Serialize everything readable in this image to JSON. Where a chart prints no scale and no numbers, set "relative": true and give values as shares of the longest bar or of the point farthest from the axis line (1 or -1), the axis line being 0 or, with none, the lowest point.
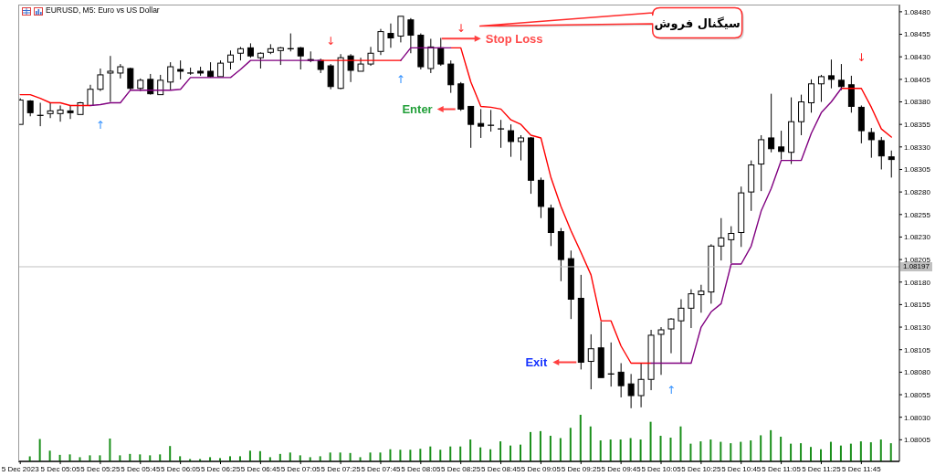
{
  "chart_data": [
    {
      "type": "candlestick",
      "title": "EURUSD, M5: Euro vs US Dollar",
      "x": [
        "2023-12-05T04:45",
        "2023-12-05T04:50",
        "2023-12-05T04:55",
        "2023-12-05T05:00",
        "2023-12-05T05:05",
        "2023-12-05T05:10",
        "2023-12-05T05:15",
        "2023-12-05T05:20",
        "2023-12-05T05:25",
        "2023-12-05T05:30",
        "2023-12-05T05:35",
        "2023-12-05T05:40",
        "2023-12-05T05:45",
        "2023-12-05T05:50",
        "2023-12-05T05:55",
        "2023-12-05T06:00",
        "2023-12-05T06:05",
        "2023-12-05T06:10",
        "2023-12-05T06:15",
        "2023-12-05T06:20",
        "2023-12-05T06:25",
        "2023-12-05T06:30",
        "2023-12-05T06:35",
        "2023-12-05T06:40",
        "2023-12-05T06:45",
        "2023-12-05T06:50",
        "2023-12-05T06:55",
        "2023-12-05T07:00",
        "2023-12-05T07:05",
        "2023-12-05T07:10",
        "2023-12-05T07:15",
        "2023-12-05T07:20",
        "2023-12-05T07:25",
        "2023-12-05T07:30",
        "2023-12-05T07:35",
        "2023-12-05T07:40",
        "2023-12-05T07:45",
        "2023-12-05T07:50",
        "2023-12-05T07:55",
        "2023-12-05T08:00",
        "2023-12-05T08:05",
        "2023-12-05T08:10",
        "2023-12-05T08:15",
        "2023-12-05T08:20",
        "2023-12-05T08:25",
        "2023-12-05T08:30",
        "2023-12-05T08:35",
        "2023-12-05T08:40",
        "2023-12-05T08:45",
        "2023-12-05T08:50",
        "2023-12-05T08:55",
        "2023-12-05T09:00",
        "2023-12-05T09:05",
        "2023-12-05T09:10",
        "2023-12-05T09:15",
        "2023-12-05T09:20",
        "2023-12-05T09:25",
        "2023-12-05T09:30",
        "2023-12-05T09:35",
        "2023-12-05T09:40",
        "2023-12-05T09:45",
        "2023-12-05T09:50",
        "2023-12-05T09:55",
        "2023-12-05T10:00",
        "2023-12-05T10:05",
        "2023-12-05T10:10",
        "2023-12-05T10:15",
        "2023-12-05T10:20",
        "2023-12-05T10:25",
        "2023-12-05T10:30",
        "2023-12-05T10:35",
        "2023-12-05T10:40",
        "2023-12-05T10:45",
        "2023-12-05T10:50",
        "2023-12-05T10:55",
        "2023-12-05T11:00",
        "2023-12-05T11:05",
        "2023-12-05T11:10",
        "2023-12-05T11:15",
        "2023-12-05T11:20",
        "2023-12-05T11:25",
        "2023-12-05T11:30",
        "2023-12-05T11:35",
        "2023-12-05T11:40",
        "2023-12-05T11:45",
        "2023-12-05T11:50",
        "2023-12-05T11:55",
        "2023-12-05T12:00"
      ],
      "ohlc": [
        [
          1.08355,
          1.08384,
          1.08355,
          1.08382
        ],
        [
          1.08381,
          1.08382,
          1.08364,
          1.08368
        ],
        [
          1.08365,
          1.08379,
          1.08353,
          1.08365
        ],
        [
          1.08367,
          1.08379,
          1.08362,
          1.0837
        ],
        [
          1.08367,
          1.08376,
          1.08358,
          1.08371
        ],
        [
          1.0837,
          1.08376,
          1.08361,
          1.08368
        ],
        [
          1.08366,
          1.0838,
          1.08366,
          1.08379
        ],
        [
          1.08376,
          1.08399,
          1.08376,
          1.08394
        ],
        [
          1.08394,
          1.08417,
          1.08392,
          1.0841
        ],
        [
          1.08412,
          1.08431,
          1.0838,
          1.08414
        ],
        [
          1.08412,
          1.08422,
          1.08406,
          1.08419
        ],
        [
          1.08417,
          1.08418,
          1.08393,
          1.08395
        ],
        [
          1.08395,
          1.08406,
          1.08392,
          1.08404
        ],
        [
          1.08405,
          1.08411,
          1.08388,
          1.08389
        ],
        [
          1.08388,
          1.0841,
          1.08388,
          1.08404
        ],
        [
          1.08402,
          1.08424,
          1.08393,
          1.08419
        ],
        [
          1.08416,
          1.08426,
          1.08405,
          1.08414
        ],
        [
          1.08412,
          1.08418,
          1.0841,
          1.08412
        ],
        [
          1.08414,
          1.08419,
          1.08409,
          1.08412
        ],
        [
          1.08414,
          1.08424,
          1.08407,
          1.08408
        ],
        [
          1.08408,
          1.08426,
          1.08408,
          1.08423
        ],
        [
          1.08424,
          1.08437,
          1.08416,
          1.08432
        ],
        [
          1.08434,
          1.08441,
          1.08426,
          1.08439
        ],
        [
          1.0844,
          1.08445,
          1.08429,
          1.08431
        ],
        [
          1.08429,
          1.08435,
          1.08417,
          1.08434
        ],
        [
          1.08435,
          1.08444,
          1.08433,
          1.08439
        ],
        [
          1.08437,
          1.08441,
          1.08421,
          1.0844
        ],
        [
          1.08439,
          1.08456,
          1.08436,
          1.08439
        ],
        [
          1.0844,
          1.08441,
          1.08416,
          1.08431
        ],
        [
          1.08427,
          1.08436,
          1.08424,
          1.08426
        ],
        [
          1.08426,
          1.08428,
          1.08412,
          1.08416
        ],
        [
          1.0842,
          1.08422,
          1.08394,
          1.08397
        ],
        [
          1.08395,
          1.08433,
          1.08394,
          1.08429
        ],
        [
          1.08431,
          1.08433,
          1.08402,
          1.08415
        ],
        [
          1.08414,
          1.08429,
          1.08414,
          1.08422
        ],
        [
          1.08422,
          1.08441,
          1.0842,
          1.08434
        ],
        [
          1.08436,
          1.08461,
          1.08432,
          1.08458
        ],
        [
          1.08456,
          1.08467,
          1.0844,
          1.08451
        ],
        [
          1.08453,
          1.08475,
          1.08446,
          1.08475
        ],
        [
          1.08471,
          1.08473,
          1.08434,
          1.08454
        ],
        [
          1.08454,
          1.08456,
          1.08416,
          1.08419
        ],
        [
          1.08417,
          1.0845,
          1.08412,
          1.08441
        ],
        [
          1.0844,
          1.08451,
          1.0842,
          1.08422
        ],
        [
          1.08422,
          1.08426,
          1.0839,
          1.08399
        ],
        [
          1.084,
          1.08402,
          1.0837,
          1.08372
        ],
        [
          1.08375,
          1.08375,
          1.08329,
          1.08355
        ],
        [
          1.08356,
          1.08372,
          1.0834,
          1.08353
        ],
        [
          1.08354,
          1.08371,
          1.08347,
          1.08354
        ],
        [
          1.0835,
          1.0836,
          1.08329,
          1.0835
        ],
        [
          1.08348,
          1.08355,
          1.08319,
          1.08336
        ],
        [
          1.08336,
          1.08343,
          1.08315,
          1.0834
        ],
        [
          1.0834,
          1.08341,
          1.08278,
          1.08293
        ],
        [
          1.08293,
          1.08296,
          1.08251,
          1.08264
        ],
        [
          1.08262,
          1.08266,
          1.0822,
          1.08235
        ],
        [
          1.08236,
          1.0824,
          1.08181,
          1.08205
        ],
        [
          1.08206,
          1.08215,
          1.08139,
          1.08161
        ],
        [
          1.08162,
          1.08188,
          1.08083,
          1.08091
        ],
        [
          1.08092,
          1.08122,
          1.08061,
          1.08106
        ],
        [
          1.08107,
          1.08136,
          1.08074,
          1.08074
        ],
        [
          1.08078,
          1.08113,
          1.08064,
          1.08078
        ],
        [
          1.0808,
          1.0809,
          1.08052,
          1.08065
        ],
        [
          1.08067,
          1.08078,
          1.0804,
          1.08054
        ],
        [
          1.08054,
          1.0809,
          1.08041,
          1.08072
        ],
        [
          1.08072,
          1.08127,
          1.0806,
          1.08121
        ],
        [
          1.08122,
          1.0813,
          1.08077,
          1.08127
        ],
        [
          1.08128,
          1.0814,
          1.08101,
          1.08139
        ],
        [
          1.08137,
          1.08161,
          1.0809,
          1.08151
        ],
        [
          1.08151,
          1.08172,
          1.08129,
          1.08167
        ],
        [
          1.08166,
          1.08177,
          1.08146,
          1.0817
        ],
        [
          1.08169,
          1.08222,
          1.08156,
          1.0822
        ],
        [
          1.0822,
          1.08251,
          1.08204,
          1.08229
        ],
        [
          1.08227,
          1.08242,
          1.08201,
          1.08234
        ],
        [
          1.08235,
          1.08286,
          1.08219,
          1.08279
        ],
        [
          1.0828,
          1.08315,
          1.08259,
          1.0831
        ],
        [
          1.08311,
          1.08343,
          1.08281,
          1.08338
        ],
        [
          1.0834,
          1.08389,
          1.08324,
          1.08328
        ],
        [
          1.0833,
          1.08348,
          1.08316,
          1.08325
        ],
        [
          1.08324,
          1.08385,
          1.08311,
          1.08358
        ],
        [
          1.08358,
          1.08388,
          1.08343,
          1.0838
        ],
        [
          1.08379,
          1.08405,
          1.08368,
          1.084
        ],
        [
          1.084,
          1.0841,
          1.0838,
          1.08408
        ],
        [
          1.08409,
          1.08427,
          1.08395,
          1.08405
        ],
        [
          1.08404,
          1.08422,
          1.08393,
          1.08397
        ],
        [
          1.08399,
          1.08409,
          1.08368,
          1.08375
        ],
        [
          1.08374,
          1.08376,
          1.08334,
          1.08348
        ],
        [
          1.08346,
          1.08351,
          1.08318,
          1.08338
        ],
        [
          1.08337,
          1.08341,
          1.08305,
          1.0832
        ],
        [
          1.08319,
          1.08326,
          1.08296,
          1.08316
        ]
      ],
      "series": [
        {
          "type": "line",
          "color": "#ff0000",
          "values": [
            1.08388,
            1.08388,
            1.08384,
            1.08379,
            1.08379,
            1.08376,
            1.08376,
            1.08376,
            null,
            null,
            null,
            null,
            null,
            null,
            null,
            null,
            null,
            null,
            null,
            null,
            null,
            null,
            null,
            null,
            null,
            null,
            null,
            null,
            null,
            null,
            1.08426,
            1.08426,
            1.08426,
            1.08426,
            1.08426,
            1.08426,
            1.08426,
            1.08426,
            1.08426,
            null,
            null,
            null,
            null,
            1.0844,
            1.0844,
            1.08402,
            1.08375,
            1.08374,
            1.08372,
            1.0836,
            1.08355,
            1.08343,
            1.0834,
            1.08296,
            1.08264,
            1.08237,
            1.08213,
            1.08188,
            1.08137,
            1.08137,
            1.08109,
            1.0809,
            1.0809,
            1.0809,
            null,
            null,
            null,
            null,
            null,
            null,
            null,
            null,
            null,
            null,
            null,
            null,
            null,
            null,
            null,
            null,
            null,
            null,
            1.08395,
            1.08395,
            1.08395,
            1.08374,
            1.0835,
            1.08341
          ]
        },
        {
          "type": "line",
          "color": "#800080",
          "values": [
            null,
            null,
            null,
            null,
            null,
            null,
            null,
            1.08376,
            1.08377,
            1.08379,
            1.08379,
            1.08393,
            1.08393,
            1.08393,
            1.08393,
            1.08393,
            1.08394,
            1.08407,
            1.08407,
            1.08407,
            1.08407,
            1.08407,
            1.08416,
            1.08426,
            1.08426,
            1.08426,
            1.08426,
            1.08426,
            1.08426,
            1.08426,
            1.08426,
            null,
            null,
            null,
            null,
            null,
            null,
            null,
            1.08426,
            1.0844,
            1.0844,
            1.0844,
            1.0844,
            1.0844,
            null,
            null,
            null,
            null,
            null,
            null,
            null,
            null,
            null,
            null,
            null,
            null,
            null,
            null,
            null,
            null,
            null,
            null,
            null,
            1.0809,
            1.0809,
            1.0809,
            1.0809,
            1.0809,
            1.0813,
            1.08147,
            1.08156,
            1.082,
            1.082,
            1.0822,
            1.08259,
            1.08284,
            1.08315,
            1.08315,
            1.08315,
            1.08345,
            1.08368,
            1.0838,
            1.08395,
            null,
            null,
            null,
            null,
            null
          ]
        }
      ],
      "xlim": [
        "2023-12-05T04:44",
        "2023-12-05T12:04"
      ],
      "xticks": [
        {
          "value": "2023-12-05T04:45",
          "label": "5 Dec 2023"
        },
        {
          "value": "2023-12-05T05:05",
          "label": "5 Dec 05:05"
        },
        {
          "value": "2023-12-05T05:25",
          "label": "5 Dec 05:25"
        },
        {
          "value": "2023-12-05T05:45",
          "label": "5 Dec 05:45"
        },
        {
          "value": "2023-12-05T06:05",
          "label": "5 Dec 06:05"
        },
        {
          "value": "2023-12-05T06:25",
          "label": "5 Dec 06:25"
        },
        {
          "value": "2023-12-05T06:45",
          "label": "5 Dec 06:45"
        },
        {
          "value": "2023-12-05T07:05",
          "label": "5 Dec 07:05"
        },
        {
          "value": "2023-12-05T07:25",
          "label": "5 Dec 07:25"
        },
        {
          "value": "2023-12-05T07:45",
          "label": "5 Dec 07:45"
        },
        {
          "value": "2023-12-05T08:05",
          "label": "5 Dec 08:05"
        },
        {
          "value": "2023-12-05T08:25",
          "label": "5 Dec 08:25"
        },
        {
          "value": "2023-12-05T08:45",
          "label": "5 Dec 08:45"
        },
        {
          "value": "2023-12-05T09:05",
          "label": "5 Dec 09:05"
        },
        {
          "value": "2023-12-05T09:25",
          "label": "5 Dec 09:25"
        },
        {
          "value": "2023-12-05T09:45",
          "label": "5 Dec 09:45"
        },
        {
          "value": "2023-12-05T10:05",
          "label": "5 Dec 10:05"
        },
        {
          "value": "2023-12-05T10:25",
          "label": "5 Dec 10:25"
        },
        {
          "value": "2023-12-05T10:45",
          "label": "5 Dec 10:45"
        },
        {
          "value": "2023-12-05T11:05",
          "label": "5 Dec 11:05"
        },
        {
          "value": "2023-12-05T11:25",
          "label": "5 Dec 11:25"
        },
        {
          "value": "2023-12-05T11:45",
          "label": "5 Dec 11:45"
        }
      ],
      "ylim": [
        1.07981,
        1.08488
      ],
      "yticks": [
        {
          "value": 1.0848,
          "label": "1.08480"
        },
        1.08455,
        {
          "value": 1.0843,
          "label": "1.08430"
        },
        1.08405,
        {
          "value": 1.0838,
          "label": "1.08380"
        },
        1.08355,
        {
          "value": 1.0833,
          "label": "1.08330"
        },
        1.08305,
        {
          "value": 1.0828,
          "label": "1.08280"
        },
        1.08255,
        {
          "value": 1.0823,
          "label": "1.08230"
        },
        1.08205,
        {
          "value": 1.0818,
          "label": "1.08180"
        },
        1.08155,
        {
          "value": 1.0813,
          "label": "1.08130"
        },
        1.08105,
        {
          "value": 1.0808,
          "label": "1.08080"
        },
        1.08055,
        {
          "value": 1.0803,
          "label": "1.08030"
        },
        1.08005
      ],
      "ref_lines": [
        {
          "axis": "y",
          "value": 1.08197,
          "label": "1.08197",
          "color": "#c0c0c0"
        }
      ],
      "annotations": [
        "↓",
        "↓",
        "↓",
        "↑",
        "↑",
        "↑",
        {
          "text": "Stop Loss",
          "x": "2023-12-05T08:20",
          "y": 1.0844
        },
        {
          "text": "Enter",
          "x": "2023-12-05T08:25",
          "y": 1.08372
        },
        {
          "text": "Exit",
          "x": "2023-12-05T09:25",
          "y": 1.08091
        },
        "سیگنال فروش"
      ]
    },
    {
      "type": "bar",
      "relative": true,
      "tick_labels": false,
      "color": "#1a8f1a",
      "x": [
        "2023-12-05T04:50",
        "2023-12-05T04:55",
        "2023-12-05T05:00",
        "2023-12-05T05:05",
        "2023-12-05T05:10",
        "2023-12-05T05:15",
        "2023-12-05T05:20",
        "2023-12-05T05:25",
        "2023-12-05T05:30",
        "2023-12-05T05:35",
        "2023-12-05T05:40",
        "2023-12-05T05:45",
        "2023-12-05T05:50",
        "2023-12-05T05:55",
        "2023-12-05T06:00",
        "2023-12-05T06:05",
        "2023-12-05T06:10",
        "2023-12-05T06:15",
        "2023-12-05T06:20",
        "2023-12-05T06:25",
        "2023-12-05T06:30",
        "2023-12-05T06:35",
        "2023-12-05T06:40",
        "2023-12-05T06:45",
        "2023-12-05T06:50",
        "2023-12-05T06:55",
        "2023-12-05T07:00",
        "2023-12-05T07:05",
        "2023-12-05T07:10",
        "2023-12-05T07:15",
        "2023-12-05T07:20",
        "2023-12-05T07:25",
        "2023-12-05T07:30",
        "2023-12-05T07:35",
        "2023-12-05T07:40",
        "2023-12-05T07:45",
        "2023-12-05T07:50",
        "2023-12-05T07:55",
        "2023-12-05T08:00",
        "2023-12-05T08:05",
        "2023-12-05T08:10",
        "2023-12-05T08:15",
        "2023-12-05T08:20",
        "2023-12-05T08:25",
        "2023-12-05T08:30",
        "2023-12-05T08:35",
        "2023-12-05T08:40",
        "2023-12-05T08:45",
        "2023-12-05T08:50",
        "2023-12-05T08:55",
        "2023-12-05T09:00",
        "2023-12-05T09:05",
        "2023-12-05T09:10",
        "2023-12-05T09:15",
        "2023-12-05T09:20",
        "2023-12-05T09:25",
        "2023-12-05T09:30",
        "2023-12-05T09:35",
        "2023-12-05T09:40",
        "2023-12-05T09:45",
        "2023-12-05T09:50",
        "2023-12-05T09:55",
        "2023-12-05T10:00",
        "2023-12-05T10:05",
        "2023-12-05T10:10",
        "2023-12-05T10:15",
        "2023-12-05T10:20",
        "2023-12-05T10:25",
        "2023-12-05T10:30",
        "2023-12-05T10:35",
        "2023-12-05T10:40",
        "2023-12-05T10:45",
        "2023-12-05T10:50",
        "2023-12-05T10:55",
        "2023-12-05T11:00",
        "2023-12-05T11:05",
        "2023-12-05T11:10",
        "2023-12-05T11:15",
        "2023-12-05T11:20",
        "2023-12-05T11:25",
        "2023-12-05T11:30",
        "2023-12-05T11:35",
        "2023-12-05T11:40",
        "2023-12-05T11:45",
        "2023-12-05T11:50",
        "2023-12-05T11:55",
        "2023-12-05T12:00"
      ],
      "values": [
        0.11,
        0.48,
        0.23,
        0.14,
        0.15,
        0.09,
        0.13,
        0.13,
        0.49,
        0.13,
        0.16,
        0.15,
        0.13,
        0.15,
        0.33,
        0.11,
        0.05,
        0.05,
        0.09,
        0.07,
        0.11,
        0.11,
        0.23,
        0.22,
        0.09,
        0.16,
        0.19,
        0.13,
        0.09,
        0.11,
        0.19,
        0.19,
        0.18,
        0.09,
        0.19,
        0.19,
        0.26,
        0.25,
        0.25,
        0.27,
        0.32,
        0.25,
        0.32,
        0.32,
        0.47,
        0.3,
        0.26,
        0.43,
        0.34,
        0.36,
        0.63,
        0.65,
        0.55,
        0.5,
        0.72,
        1,
        0.75,
        0.45,
        0.47,
        0.47,
        0.5,
        0.47,
        0.85,
        0.55,
        0.51,
        0.75,
        0.38,
        0.43,
        0.47,
        0.42,
        0.39,
        0.42,
        0.45,
        0.56,
        0.67,
        0.53,
        0.38,
        0.39,
        0.31,
        0.26,
        0.42,
        0.34,
        0.38,
        0.43,
        0.41,
        0.47,
        0.39
      ],
      "xlim": [
        "2023-12-05T04:44",
        "2023-12-05T12:04"
      ]
    }
  ]
}
